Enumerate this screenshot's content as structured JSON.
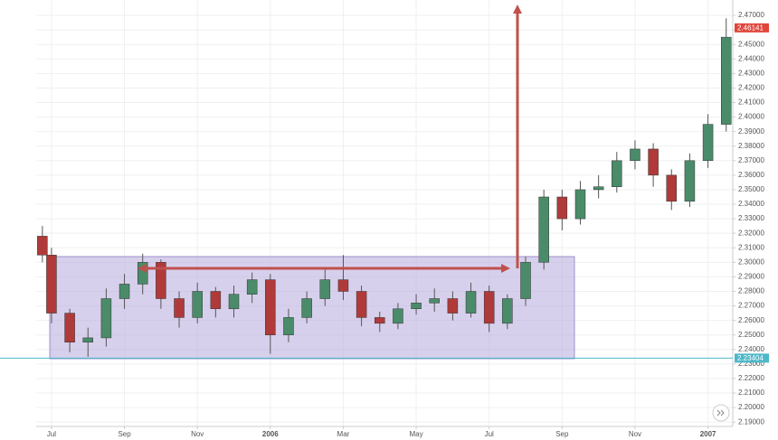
{
  "chart_data": {
    "type": "candlestick",
    "xlim": [
      -0.42,
      18.68
    ],
    "xticks": [
      {
        "value": 0,
        "label": "Jul"
      },
      {
        "value": 2,
        "label": "Sep"
      },
      {
        "value": 4,
        "label": "Nov"
      },
      {
        "value": 6,
        "label": "2006"
      },
      {
        "value": 8,
        "label": "Mar"
      },
      {
        "value": 10,
        "label": "May"
      },
      {
        "value": 12,
        "label": "Jul"
      },
      {
        "value": 14,
        "label": "Sep"
      },
      {
        "value": 16,
        "label": "Nov"
      },
      {
        "value": 18,
        "label": "2007"
      }
    ],
    "ylim": [
      2.187,
      2.4806
    ],
    "yticks": [
      {
        "value": 2.19,
        "label": "2.19000"
      },
      {
        "value": 2.2,
        "label": "2.20000"
      },
      {
        "value": 2.21,
        "label": "2.21000"
      },
      {
        "value": 2.22,
        "label": "2.22000"
      },
      {
        "value": 2.23,
        "label": "2.23000"
      },
      {
        "value": 2.24,
        "label": "2.24000"
      },
      {
        "value": 2.25,
        "label": "2.25000"
      },
      {
        "value": 2.26,
        "label": "2.26000"
      },
      {
        "value": 2.27,
        "label": "2.27000"
      },
      {
        "value": 2.28,
        "label": "2.28000"
      },
      {
        "value": 2.29,
        "label": "2.29000"
      },
      {
        "value": 2.3,
        "label": "2.30000"
      },
      {
        "value": 2.31,
        "label": "2.31000"
      },
      {
        "value": 2.32,
        "label": "2.32000"
      },
      {
        "value": 2.33,
        "label": "2.33000"
      },
      {
        "value": 2.34,
        "label": "2.34000"
      },
      {
        "value": 2.35,
        "label": "2.35000"
      },
      {
        "value": 2.36,
        "label": "2.36000"
      },
      {
        "value": 2.37,
        "label": "2.37000"
      },
      {
        "value": 2.38,
        "label": "2.38000"
      },
      {
        "value": 2.39,
        "label": "2.39000"
      },
      {
        "value": 2.4,
        "label": "2.40000"
      },
      {
        "value": 2.41,
        "label": "2.41000"
      },
      {
        "value": 2.42,
        "label": "2.42000"
      },
      {
        "value": 2.43,
        "label": "2.43000"
      },
      {
        "value": 2.44,
        "label": "2.44000"
      },
      {
        "value": 2.45,
        "label": "2.45000"
      },
      {
        "value": 2.46,
        "label": "2.46000"
      },
      {
        "value": 2.47,
        "label": "2.47000"
      }
    ],
    "grid": true,
    "up_color": "#4a8b6a",
    "down_color": "#b03a3a",
    "candles": {
      "x": [
        -0.25,
        0,
        0.5,
        1,
        1.5,
        2,
        2.5,
        3,
        3.5,
        4,
        4.5,
        5,
        5.5,
        6,
        6.5,
        7,
        7.5,
        8,
        8.5,
        9,
        9.5,
        10,
        10.5,
        11,
        11.5,
        12,
        12.5,
        13,
        13.5,
        14,
        14.5,
        15,
        15.5,
        16,
        16.5,
        17,
        17.5,
        18,
        18.5
      ],
      "open": [
        2.318,
        2.305,
        2.265,
        2.245,
        2.248,
        2.275,
        2.285,
        2.3,
        2.275,
        2.262,
        2.28,
        2.268,
        2.278,
        2.288,
        2.25,
        2.262,
        2.275,
        2.288,
        2.28,
        2.262,
        2.258,
        2.268,
        2.272,
        2.275,
        2.265,
        2.28,
        2.258,
        2.275,
        2.3,
        2.345,
        2.33,
        2.35,
        2.352,
        2.37,
        2.378,
        2.36,
        2.342,
        2.37,
        2.395
      ],
      "high": [
        2.325,
        2.31,
        2.268,
        2.255,
        2.282,
        2.292,
        2.306,
        2.302,
        2.28,
        2.286,
        2.283,
        2.284,
        2.293,
        2.292,
        2.268,
        2.28,
        2.295,
        2.305,
        2.284,
        2.266,
        2.272,
        2.278,
        2.282,
        2.28,
        2.286,
        2.284,
        2.278,
        2.304,
        2.35,
        2.35,
        2.356,
        2.36,
        2.376,
        2.384,
        2.382,
        2.364,
        2.375,
        2.402,
        2.468
      ],
      "low": [
        2.3,
        2.258,
        2.238,
        2.235,
        2.242,
        2.268,
        2.278,
        2.268,
        2.255,
        2.258,
        2.262,
        2.262,
        2.272,
        2.237,
        2.245,
        2.258,
        2.27,
        2.274,
        2.256,
        2.252,
        2.254,
        2.264,
        2.266,
        2.26,
        2.262,
        2.252,
        2.254,
        2.27,
        2.295,
        2.322,
        2.326,
        2.344,
        2.348,
        2.364,
        2.352,
        2.336,
        2.338,
        2.365,
        2.39
      ],
      "close": [
        2.305,
        2.265,
        2.245,
        2.248,
        2.275,
        2.285,
        2.3,
        2.275,
        2.262,
        2.28,
        2.268,
        2.278,
        2.288,
        2.25,
        2.262,
        2.275,
        2.288,
        2.28,
        2.262,
        2.258,
        2.268,
        2.272,
        2.275,
        2.265,
        2.28,
        2.258,
        2.275,
        2.3,
        2.345,
        2.33,
        2.35,
        2.352,
        2.37,
        2.378,
        2.36,
        2.342,
        2.37,
        2.395,
        2.455
      ]
    },
    "last_price": 2.46141,
    "last_price_color": "#e0463a",
    "marked_price": 2.23404,
    "marked_price_color": "#4cb8c8"
  }
}
